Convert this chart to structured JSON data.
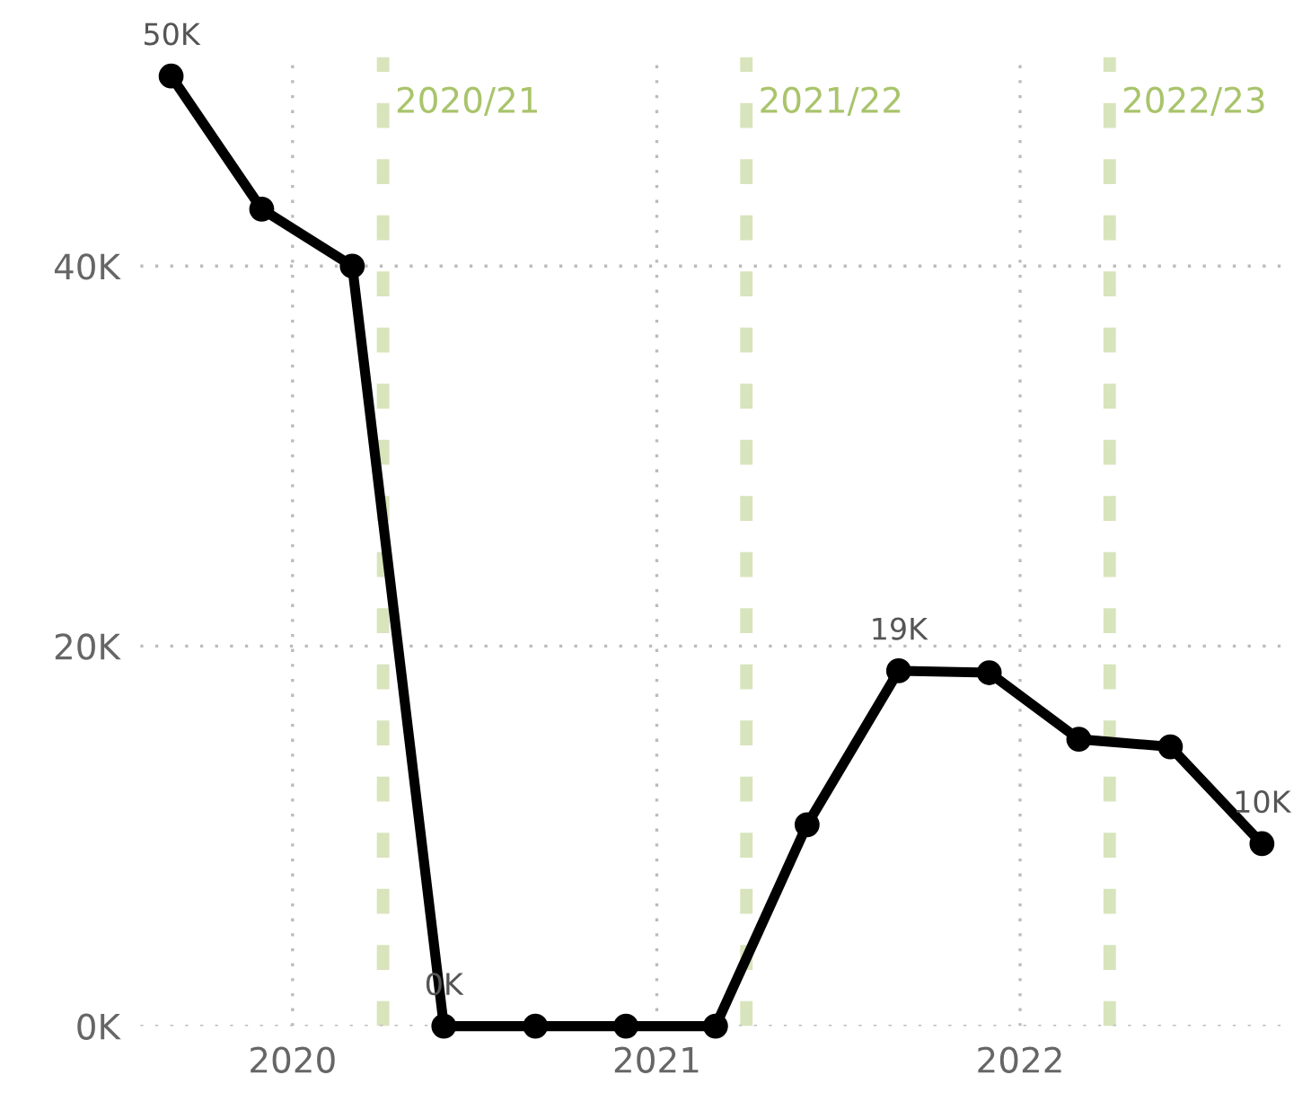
{
  "chart_data": {
    "type": "line",
    "x": [
      "2019-09",
      "2019-12",
      "2020-03",
      "2020-06",
      "2020-09",
      "2020-12",
      "2021-03",
      "2021-06",
      "2021-09",
      "2021-12",
      "2022-03",
      "2022-06",
      "2022-09"
    ],
    "series": [
      {
        "color": "#000000",
        "values": [
          50000,
          43000,
          40000,
          0,
          0,
          0,
          0,
          10600,
          18700,
          18600,
          15100,
          14700,
          9600
        ],
        "value_labels": [
          "50K",
          null,
          null,
          "0K",
          null,
          null,
          null,
          null,
          "19K",
          null,
          null,
          null,
          "10K"
        ]
      }
    ],
    "xlim": [
      "2019-08-01",
      "2022-09-20"
    ],
    "xticks": [
      {
        "value": "2020",
        "label": "2020"
      },
      {
        "value": "2021",
        "label": "2021"
      },
      {
        "value": "2022",
        "label": "2022"
      }
    ],
    "ylim": [
      0,
      51000
    ],
    "yticks": [
      {
        "value": 0,
        "label": "0K"
      },
      {
        "value": 20000,
        "label": "20K"
      },
      {
        "value": 40000,
        "label": "40K"
      }
    ],
    "ref_lines": [
      {
        "axis": "x",
        "value": "2020-04-01",
        "label": "2020/21",
        "color": "#a9c46b",
        "line_style": "dashed"
      },
      {
        "axis": "x",
        "value": "2021-04-01",
        "label": "2021/22",
        "color": "#a9c46b",
        "line_style": "dashed"
      },
      {
        "axis": "x",
        "value": "2022-04-01",
        "label": "2022/23",
        "color": "#a9c46b",
        "line_style": "dashed"
      }
    ],
    "grid": true,
    "marker": "circle",
    "line_style": "solid",
    "legend": false
  }
}
